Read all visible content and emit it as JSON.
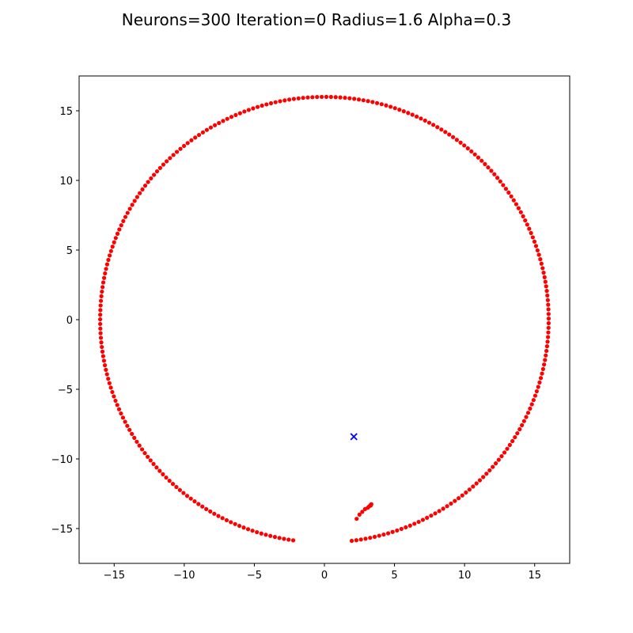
{
  "chart_data": {
    "type": "scatter",
    "title": "Neurons=300 Iteration=0 Radius=1.6 Alpha=0.3",
    "xlabel": "",
    "ylabel": "",
    "xlim": [
      -17.5,
      17.5
    ],
    "ylim": [
      -17.5,
      17.5
    ],
    "grid": false,
    "legend": "none",
    "x_ticks": [
      -15,
      -10,
      -5,
      0,
      5,
      10,
      15
    ],
    "y_ticks": [
      -15,
      -10,
      -5,
      0,
      5,
      10,
      15
    ],
    "x_tick_labels": [
      "−15",
      "−10",
      "−5",
      "0",
      "5",
      "10",
      "15"
    ],
    "y_tick_labels": [
      "−15",
      "−10",
      "−5",
      "0",
      "5",
      "10",
      "15"
    ],
    "series": [
      {
        "marker": "circle",
        "color": "#ff0000",
        "n_points": 300,
        "ring_radius": 16,
        "main_arc_start_deg": -83,
        "main_arc_end_deg": 262,
        "main_arc_points": 291,
        "detached_arc": [
          [
            2.3,
            -14.3
          ],
          [
            2.5,
            -14.0
          ],
          [
            2.7,
            -13.8
          ],
          [
            2.9,
            -13.6
          ],
          [
            3.1,
            -13.5
          ],
          [
            3.2,
            -13.4
          ],
          [
            3.3,
            -13.35
          ],
          [
            3.3,
            -13.3
          ],
          [
            3.35,
            -13.25
          ]
        ]
      }
    ],
    "markers": [
      {
        "type": "x",
        "color": "#0000ff",
        "x": 2.1,
        "y": -8.4
      }
    ]
  }
}
